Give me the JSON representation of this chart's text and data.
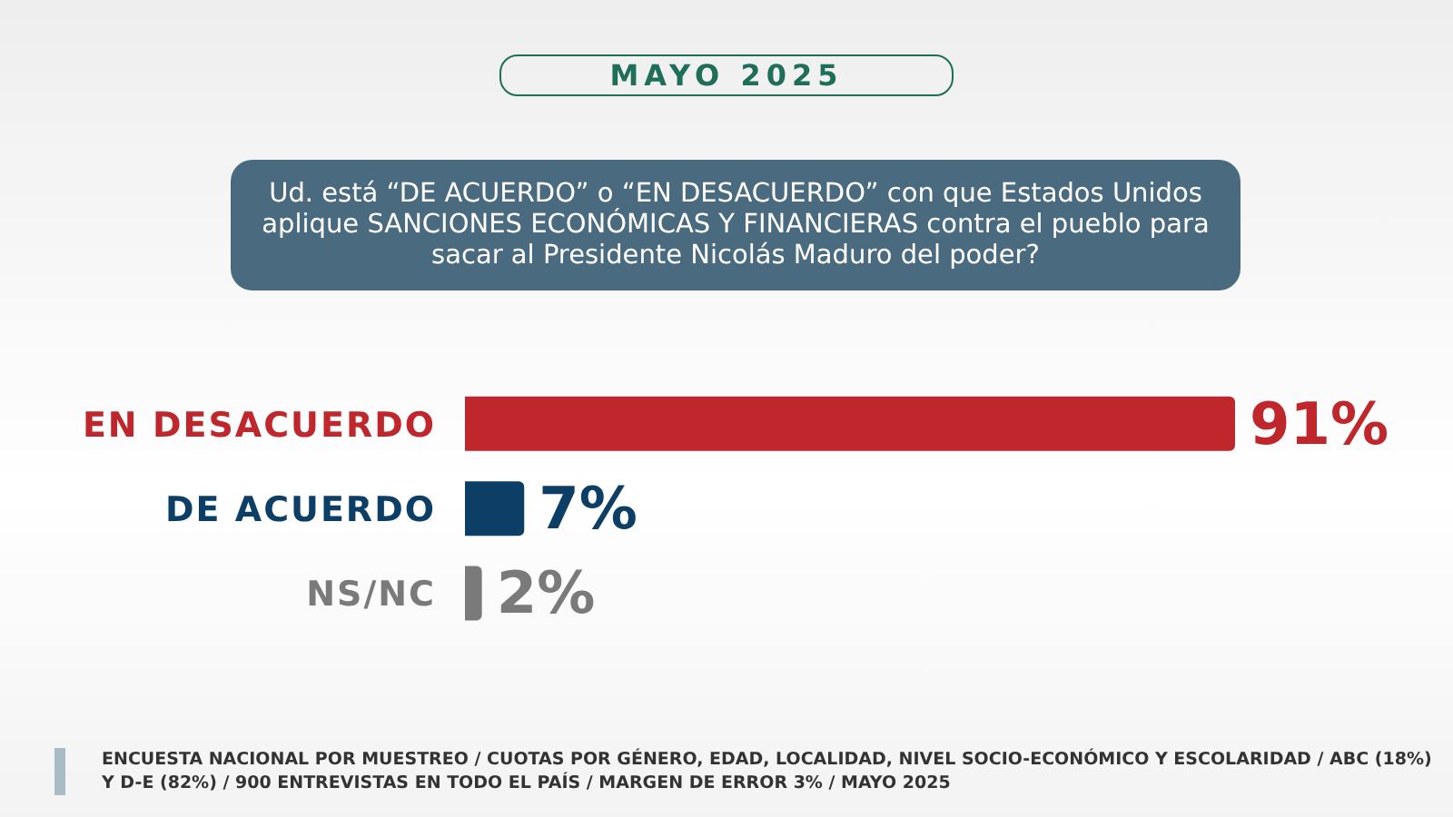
{
  "chart_data": {
    "type": "bar",
    "orientation": "horizontal",
    "title": "MAYO 2025",
    "subtitle": "Ud. está “DE ACUERDO” o “EN DESACUERDO” con que Estados Unidos aplique SANCIONES ECONÓMICAS Y FINANCIERAS contra el pueblo para sacar al Presidente Nicolás Maduro del poder?",
    "categories": [
      "EN DESACUERDO",
      "DE ACUERDO",
      "NS/NC"
    ],
    "values": [
      91,
      7,
      2
    ],
    "colors": [
      "#c0272d",
      "#0d3f66",
      "#7a7a7a"
    ],
    "value_labels": [
      "91%",
      "7%",
      "2%"
    ],
    "annotations": [
      "ENCUESTA NACIONAL POR MUESTREO / CUOTAS POR GÉNERO, EDAD, LOCALIDAD, NIVEL SOCIO-ECONÓMICO Y ESCOLARIDAD / ABC (18%) Y D-E (82%) / 900 ENTREVISTAS EN TODO EL PAÍS / MARGEN DE ERROR 3% / MAYO 2025"
    ]
  }
}
